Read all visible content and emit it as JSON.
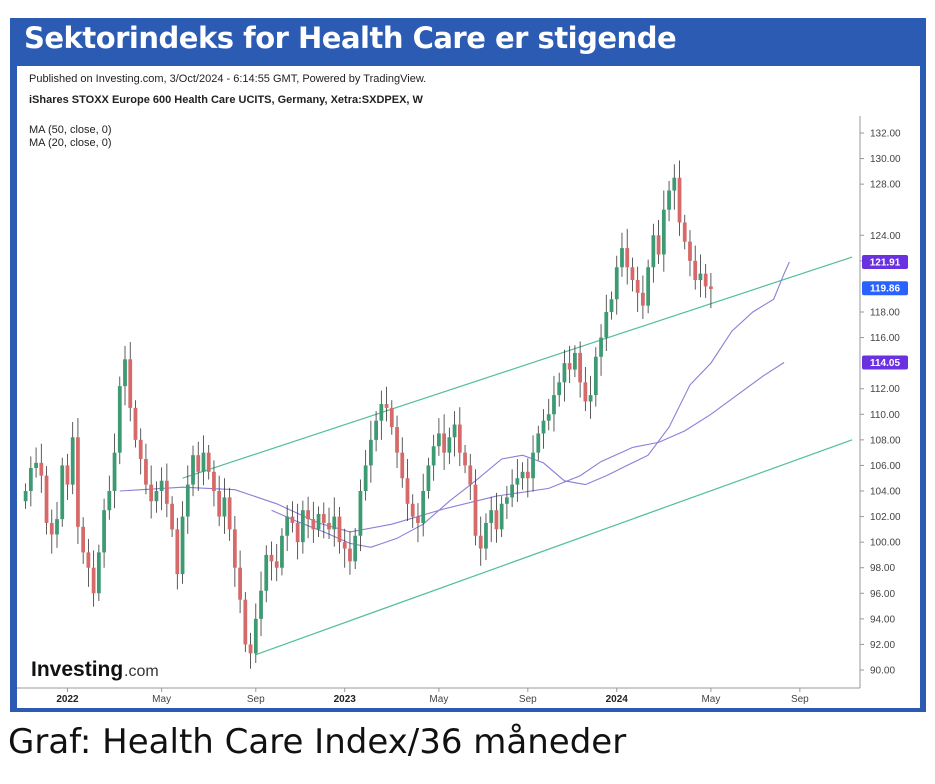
{
  "banner": {
    "title": "Sektorindeks for Health Care er stigende"
  },
  "caption": "Graf: Health Care Index/36 måneder",
  "chart_header": {
    "published": "Published on Investing.com, 3/Oct/2024 - 6:14:55 GMT, Powered by TradingView.",
    "instrument": "iShares STOXX Europe 600 Health Care UCITS, Germany, Xetra:SXDPEX, W",
    "ma50": "MA (50, close, 0)",
    "ma20": "MA (20, close, 0)"
  },
  "brand": {
    "name": "Investing",
    "suffix": ".com"
  },
  "colors": {
    "banner": "#2b5bb3",
    "up": "#3d9a72",
    "down": "#d66a6a",
    "channel": "#4fbf98",
    "ma": "#8a7fd6",
    "tag_price": "#2962ff",
    "tag_ma": "#6a31e0"
  },
  "chart_data": {
    "type": "candlestick",
    "title": "iShares STOXX Europe 600 Health Care UCITS, Germany, Xetra:SXDPEX, W",
    "ylim": [
      89,
      133
    ],
    "y_ticks": [
      "132.00",
      "130.00",
      "128.00",
      "124.00",
      "122.00",
      "118.00",
      "116.00",
      "112.00",
      "110.00",
      "108.00",
      "106.00",
      "104.00",
      "102.00",
      "100.00",
      "98.00",
      "96.00",
      "94.00",
      "92.00",
      "90.00"
    ],
    "y_tick_values": [
      132,
      130,
      128,
      124,
      122,
      118,
      116,
      112,
      110,
      108,
      106,
      104,
      102,
      100,
      98,
      96,
      94,
      92,
      90
    ],
    "x_ticks": [
      {
        "label": "2022",
        "index": 8,
        "bold": true
      },
      {
        "label": "May",
        "index": 26,
        "bold": false
      },
      {
        "label": "Sep",
        "index": 44,
        "bold": false
      },
      {
        "label": "2023",
        "index": 61,
        "bold": true
      },
      {
        "label": "May",
        "index": 79,
        "bold": false
      },
      {
        "label": "Sep",
        "index": 96,
        "bold": false
      },
      {
        "label": "2024",
        "index": 113,
        "bold": true
      },
      {
        "label": "May",
        "index": 131,
        "bold": false
      },
      {
        "label": "Sep",
        "index": 148,
        "bold": false
      }
    ],
    "closes": [
      104.0,
      105.8,
      106.2,
      105.2,
      101.5,
      100.6,
      101.8,
      106.0,
      104.5,
      108.2,
      101.2,
      99.2,
      98.0,
      96.0,
      99.2,
      102.5,
      104.0,
      107.0,
      112.2,
      114.3,
      110.5,
      108.0,
      106.5,
      104.5,
      103.2,
      104.0,
      104.8,
      103.0,
      101.0,
      97.5,
      102.0,
      104.5,
      106.8,
      105.5,
      107.0,
      105.5,
      104.0,
      102.0,
      103.5,
      101.0,
      98.0,
      95.5,
      92.0,
      91.3,
      94.0,
      96.2,
      99.0,
      98.5,
      98.0,
      100.5,
      102.0,
      101.5,
      100.0,
      102.5,
      101.8,
      101.0,
      102.2,
      101.5,
      101.0,
      102.0,
      100.0,
      99.5,
      98.5,
      100.5,
      104.0,
      106.0,
      108.0,
      109.5,
      110.8,
      110.5,
      109.0,
      107.0,
      105.0,
      103.0,
      102.0,
      101.5,
      104.0,
      106.0,
      107.5,
      108.5,
      107.0,
      108.2,
      109.2,
      107.0,
      106.0,
      104.5,
      100.5,
      99.5,
      101.5,
      102.5,
      101.0,
      103.0,
      103.5,
      104.5,
      105.0,
      105.5,
      105.0,
      107.0,
      108.5,
      109.5,
      110.0,
      111.5,
      112.5,
      114.0,
      113.5,
      114.8,
      112.5,
      111.0,
      111.5,
      114.5,
      116.0,
      118.0,
      119.0,
      121.5,
      123.0,
      121.5,
      120.5,
      119.5,
      118.5,
      121.5,
      124.0,
      122.5,
      126.0,
      127.5,
      128.5,
      125.0,
      123.5,
      122.0,
      120.5,
      121.0,
      120.0,
      119.8
    ],
    "ma50": [
      {
        "index": 18,
        "value": 104.0
      },
      {
        "index": 30,
        "value": 104.3
      },
      {
        "index": 40,
        "value": 104.1
      },
      {
        "index": 48,
        "value": 103.0
      },
      {
        "index": 56,
        "value": 101.5
      },
      {
        "index": 62,
        "value": 100.8
      },
      {
        "index": 70,
        "value": 101.4
      },
      {
        "index": 80,
        "value": 102.6
      },
      {
        "index": 90,
        "value": 103.6
      },
      {
        "index": 100,
        "value": 104.2
      },
      {
        "index": 106,
        "value": 105.2
      },
      {
        "index": 110,
        "value": 106.3
      },
      {
        "index": 116,
        "value": 107.4
      },
      {
        "index": 121,
        "value": 107.8
      },
      {
        "index": 126,
        "value": 108.7
      },
      {
        "index": 131,
        "value": 110.0
      },
      {
        "index": 136,
        "value": 111.5
      },
      {
        "index": 141,
        "value": 113.0
      },
      {
        "index": 145,
        "value": 114.05
      }
    ],
    "ma20": [
      {
        "index": 47,
        "value": 102.5
      },
      {
        "index": 52,
        "value": 101.6
      },
      {
        "index": 57,
        "value": 100.8
      },
      {
        "index": 62,
        "value": 99.9
      },
      {
        "index": 66,
        "value": 99.6
      },
      {
        "index": 71,
        "value": 100.3
      },
      {
        "index": 76,
        "value": 101.4
      },
      {
        "index": 81,
        "value": 103.2
      },
      {
        "index": 86,
        "value": 104.8
      },
      {
        "index": 91,
        "value": 106.5
      },
      {
        "index": 95,
        "value": 106.8
      },
      {
        "index": 99,
        "value": 106.2
      },
      {
        "index": 103,
        "value": 104.8
      },
      {
        "index": 107,
        "value": 104.5
      },
      {
        "index": 111,
        "value": 105.2
      },
      {
        "index": 115,
        "value": 106.0
      },
      {
        "index": 119,
        "value": 106.8
      },
      {
        "index": 123,
        "value": 109.0
      },
      {
        "index": 127,
        "value": 112.3
      },
      {
        "index": 131,
        "value": 114.0
      },
      {
        "index": 135,
        "value": 116.5
      },
      {
        "index": 139,
        "value": 118.0
      },
      {
        "index": 143,
        "value": 119.0
      },
      {
        "index": 145,
        "value": 121.0
      },
      {
        "index": 146,
        "value": 121.91
      }
    ],
    "channel_upper": [
      {
        "index": 30,
        "value": 105.0
      },
      {
        "index": 158,
        "value": 122.3
      }
    ],
    "channel_lower": [
      {
        "index": 44,
        "value": 91.2
      },
      {
        "index": 158,
        "value": 108.0
      }
    ],
    "tags": [
      {
        "label": "121.91",
        "value": 121.91,
        "kind": "ma"
      },
      {
        "label": "119.86",
        "value": 119.86,
        "kind": "price"
      },
      {
        "label": "114.05",
        "value": 114.05,
        "kind": "ma"
      }
    ]
  }
}
